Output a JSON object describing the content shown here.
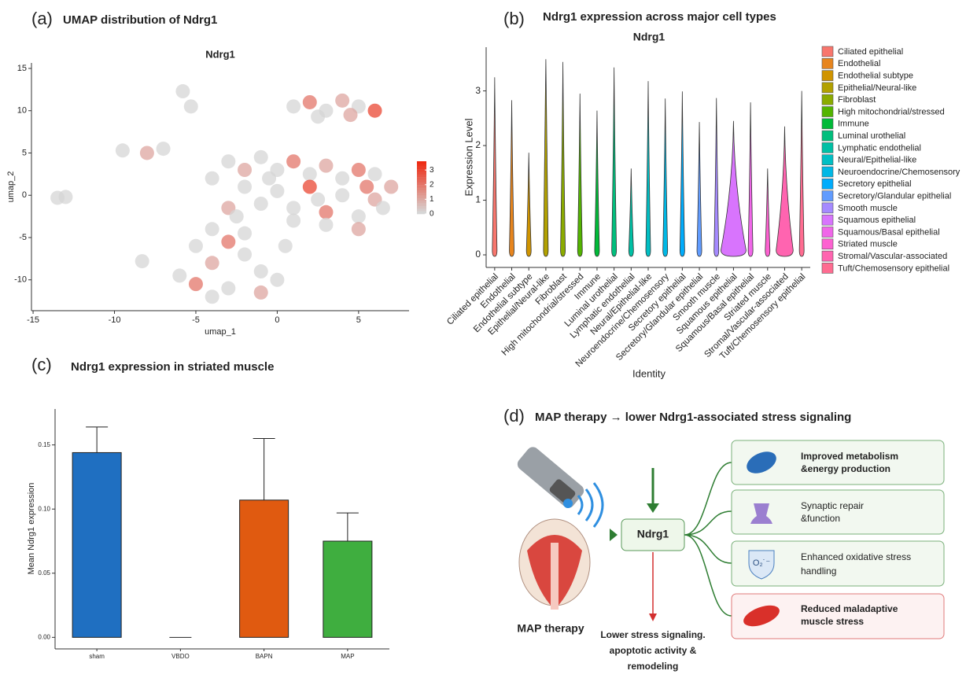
{
  "chart_data": [
    {
      "type": "scatter",
      "panel_label": "(a)",
      "title": "UMAP distribution of Ndrg1",
      "subtitle": "Ndrg1",
      "x_label": "umap_1",
      "y_label": "umap_2",
      "x": [
        1,
        2,
        3,
        4,
        5,
        6,
        2.5,
        4.5,
        -5.8,
        -5.3,
        -9.5,
        -8,
        -7,
        -13.5,
        -13,
        -3,
        -2,
        -1,
        0,
        1,
        2,
        3,
        4,
        5,
        6,
        7,
        -2,
        0,
        2,
        4,
        6,
        1,
        3,
        5,
        -1,
        -4,
        -3,
        1,
        3,
        5,
        -4,
        -3,
        -2,
        -5,
        -4,
        -2,
        -1,
        -6,
        -5,
        -3,
        -1,
        0,
        -4,
        -8.3,
        6.5,
        5.5,
        -2.5,
        2.5,
        0.5,
        -0.5
      ],
      "y": [
        10.5,
        11,
        10,
        11.2,
        10.5,
        10,
        9.3,
        9.5,
        12.3,
        10.5,
        5.3,
        5,
        5.5,
        -0.3,
        -0.2,
        4,
        3,
        4.5,
        3,
        4,
        2.5,
        3.5,
        2,
        3,
        2.5,
        1,
        1,
        0.5,
        1,
        0,
        -0.5,
        -1.5,
        -2,
        -2.5,
        -1,
        2,
        -1.5,
        -3,
        -3.5,
        -4,
        -4,
        -5.5,
        -4.5,
        -6,
        -8,
        -7,
        -9,
        -9.5,
        -10.5,
        -11,
        -11.5,
        -10,
        -12,
        -7.8,
        -1.5,
        1,
        -2.5,
        -0.5,
        -6,
        2
      ],
      "values": [
        0,
        2,
        0,
        1,
        0,
        3,
        0,
        1,
        0,
        0,
        0,
        1,
        0,
        0,
        0,
        0,
        1,
        0,
        0,
        2,
        0,
        1,
        0,
        2,
        0,
        1,
        0,
        0,
        3,
        0,
        1,
        0,
        2,
        0,
        0,
        0,
        1,
        0,
        0,
        1,
        0,
        2,
        0,
        0,
        1,
        0,
        0,
        0,
        2,
        0,
        1,
        0,
        0,
        0,
        0,
        2,
        0,
        0,
        0,
        0
      ],
      "xlim": [
        -15.1,
        8.1
      ],
      "ylim": [
        -13.65,
        15.65
      ],
      "xticks": [
        -15,
        -10,
        -5,
        0,
        5
      ],
      "yticks": [
        -10,
        -5,
        0,
        5,
        10,
        15
      ],
      "colorbar": {
        "lim": [
          0,
          3.6
        ],
        "ticks": [
          0,
          1,
          2,
          3
        ],
        "low_color": "#d6d6d6",
        "high_color": "#ee2a12"
      }
    },
    {
      "type": "violin",
      "panel_label": "(b)",
      "title": "Ndrg1 expression across major cell types",
      "subtitle": "Ndrg1",
      "x_label": "Identity",
      "y_label": "Expression Level",
      "categories": [
        "Ciliated epithelial",
        "Endothelial",
        "Endothelial subtype",
        "Epithelial/Neural-like",
        "Fibroblast",
        "High mitochondrial/stressed",
        "Immune",
        "Luminal urothelial",
        "Lymphatic endothelial",
        "Neural/Epithelial-like",
        "Neuroendocrine/Chemosensory",
        "Secretory epithelial",
        "Secretory/Glandular epithelial",
        "Smooth muscle",
        "Squamous epithelial",
        "Squamous/Basal epithelial",
        "Striated muscle",
        "Stromal/Vascular-associated",
        "Tuft/Chemosensory epithelial"
      ],
      "values": [
        3.25,
        2.83,
        1.87,
        3.58,
        3.53,
        2.95,
        2.64,
        3.43,
        1.58,
        3.18,
        2.86,
        2.99,
        2.43,
        2.87,
        2.45,
        2.79,
        1.58,
        2.35,
        3.0
      ],
      "widths": [
        0,
        0,
        0,
        0,
        0,
        0,
        0,
        0,
        0,
        0,
        0,
        0,
        0,
        0,
        1,
        0,
        0,
        0.6,
        0
      ],
      "colors": [
        "#f8766d",
        "#e7851e",
        "#d09400",
        "#b2a100",
        "#8bab00",
        "#53b400",
        "#00ba38",
        "#00bf7d",
        "#00c0a5",
        "#00bfc4",
        "#00b8e5",
        "#00acfc",
        "#619cff",
        "#a58aff",
        "#d874fd",
        "#f066e9",
        "#fd61d1",
        "#ff64b0",
        "#ff6c91"
      ],
      "ylim": [
        -0.23,
        3.8
      ],
      "yticks": [
        0,
        1,
        2,
        3
      ]
    },
    {
      "type": "bar",
      "panel_label": "(c)",
      "title": "Ndrg1 expression in striated muscle",
      "y_label": "Mean Ndrg1 expression",
      "categories": [
        "sham",
        "VBDO",
        "BAPN",
        "MAP"
      ],
      "values": [
        0.144,
        0,
        0.107,
        0.075
      ],
      "errors": [
        0.02,
        0,
        0.048,
        0.022
      ],
      "colors": [
        "#1f6fc1",
        "#888888",
        "#e05a10",
        "#3fae3f"
      ],
      "ylim": [
        -0.009,
        0.178
      ],
      "yticks": [
        {
          "value": 0,
          "label": "0.00"
        },
        0.05,
        {
          "value": 0.1,
          "label": "0.10"
        },
        0.15
      ]
    }
  ],
  "diagram": {
    "panel_label": "(d)",
    "title": "MAP therapy → lower Ndrg1-associated stress signaling",
    "center": "Ndrg1",
    "source": "MAP therapy",
    "outcome": [
      "Lower stress signaling.",
      "apoptotic activity &",
      "remodeling"
    ],
    "icon_text": "O₂˙⁻",
    "boxes": [
      {
        "lines": [
          "Improved metabolism",
          "&energy production"
        ]
      },
      {
        "lines": [
          "Synaptic repair",
          "&function"
        ]
      },
      {
        "lines": [
          "Enhanced oxidative stress",
          "handling"
        ]
      },
      {
        "lines": [
          "Reduced maladaptive",
          "muscle stress"
        ]
      }
    ]
  }
}
